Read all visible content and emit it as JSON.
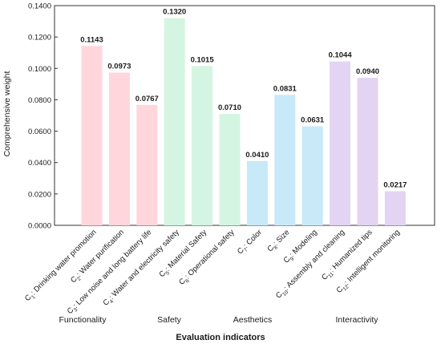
{
  "chart_data": {
    "type": "bar",
    "title": "",
    "xlabel": "Evaluation indicators",
    "ylabel": "Comprehensive weight",
    "ylim": [
      0,
      0.14
    ],
    "yticks": [
      "0.0000",
      "0.0200",
      "0.0400",
      "0.0600",
      "0.0800",
      "0.1000",
      "0.1200",
      "0.1400"
    ],
    "grid": false,
    "legend": "none",
    "categories": [
      {
        "sub": "1",
        "name": ": Drinking water promotion"
      },
      {
        "sub": "2",
        "name": ": Water purification"
      },
      {
        "sub": "3",
        "name": ": Low noise and long battery life"
      },
      {
        "sub": "4",
        "name": ": Water and electricity safety"
      },
      {
        "sub": "5",
        "name": ": Material Safety"
      },
      {
        "sub": "6",
        "name": ": Operational safety"
      },
      {
        "sub": "7",
        "name": ": Color"
      },
      {
        "sub": "8",
        "name": ": Size"
      },
      {
        "sub": "9",
        "name": ": Modeling"
      },
      {
        "sub": "10",
        "name": ": Assembly and cleaning"
      },
      {
        "sub": "11",
        "name": ": Humanized tips"
      },
      {
        "sub": "12",
        "name": ": Intelligent monitoring"
      }
    ],
    "category_prefix": "C",
    "values": [
      0.1143,
      0.0973,
      0.0767,
      0.132,
      0.1015,
      0.071,
      0.041,
      0.0831,
      0.0631,
      0.1044,
      0.094,
      0.0217
    ],
    "value_labels": [
      "0.1143",
      "0.0973",
      "0.0767",
      "0.1320",
      "0.1015",
      "0.0710",
      "0.0410",
      "0.0831",
      "0.0631",
      "0.1044",
      "0.0940",
      "0.0217"
    ],
    "groups": [
      {
        "name": "Functionality",
        "start": 0,
        "end": 2,
        "color": "#ffd6dc"
      },
      {
        "name": "Safety",
        "start": 3,
        "end": 5,
        "color": "#d4f5e2"
      },
      {
        "name": "Aesthetics",
        "start": 6,
        "end": 8,
        "color": "#c8e9f7"
      },
      {
        "name": "Interactivity",
        "start": 9,
        "end": 11,
        "color": "#e2d4f2"
      }
    ]
  }
}
